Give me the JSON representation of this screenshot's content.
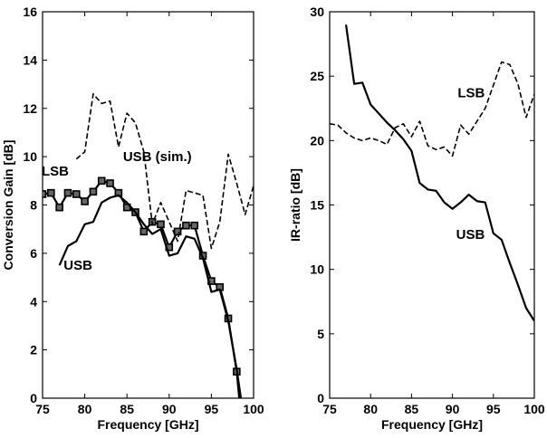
{
  "chart_data": [
    {
      "type": "line",
      "xlabel": "Frequency [GHz]",
      "ylabel": "Conversion Gain [dB]",
      "xlim": [
        75,
        100
      ],
      "ylim": [
        0,
        16
      ],
      "xticks": [
        75,
        80,
        85,
        90,
        95,
        100
      ],
      "yticks": [
        0,
        2,
        4,
        6,
        8,
        10,
        12,
        14,
        16
      ],
      "grid": false,
      "series": [
        {
          "name": "LSB",
          "style": "solid-square-markers",
          "color": "#000000",
          "points": [
            [
              75,
              8.45
            ],
            [
              76,
              8.5
            ],
            [
              77,
              7.9
            ],
            [
              78,
              8.5
            ],
            [
              79,
              8.45
            ],
            [
              80,
              8.15
            ],
            [
              81,
              8.55
            ],
            [
              82,
              9.0
            ],
            [
              83,
              8.9
            ],
            [
              84,
              8.5
            ],
            [
              85,
              7.9
            ],
            [
              86,
              7.7
            ],
            [
              87,
              6.9
            ],
            [
              88,
              7.3
            ],
            [
              89,
              7.2
            ],
            [
              90,
              6.25
            ],
            [
              91,
              6.9
            ],
            [
              92,
              7.15
            ],
            [
              93,
              7.15
            ],
            [
              94,
              5.9
            ],
            [
              95,
              4.85
            ],
            [
              96,
              4.6
            ],
            [
              97,
              3.3
            ],
            [
              98,
              1.1
            ],
            [
              98.3,
              0
            ]
          ]
        },
        {
          "name": "USB",
          "style": "solid",
          "color": "#000000",
          "points": [
            [
              77,
              5.5
            ],
            [
              78,
              6.3
            ],
            [
              79,
              6.5
            ],
            [
              80,
              7.2
            ],
            [
              81,
              7.3
            ],
            [
              82,
              8.1
            ],
            [
              83,
              8.3
            ],
            [
              84,
              8.4
            ],
            [
              85,
              8.1
            ],
            [
              86,
              7.7
            ],
            [
              87,
              7.2
            ],
            [
              88,
              6.8
            ],
            [
              89,
              7.0
            ],
            [
              90,
              5.9
            ],
            [
              91,
              6.0
            ],
            [
              92,
              6.7
            ],
            [
              93,
              6.6
            ],
            [
              94,
              5.8
            ],
            [
              95,
              4.4
            ],
            [
              96,
              4.5
            ],
            [
              97,
              3.2
            ],
            [
              98,
              1.2
            ],
            [
              98.5,
              0
            ]
          ]
        },
        {
          "name": "USB (sim.)",
          "style": "dashed",
          "color": "#000000",
          "points": [
            [
              79,
              9.9
            ],
            [
              80,
              10.2
            ],
            [
              81,
              12.6
            ],
            [
              82,
              12.2
            ],
            [
              83,
              12.3
            ],
            [
              84,
              10.4
            ],
            [
              85,
              11.8
            ],
            [
              86,
              11.4
            ],
            [
              87,
              10.2
            ],
            [
              88,
              7.2
            ],
            [
              89,
              8.1
            ],
            [
              90,
              7.3
            ],
            [
              91,
              6.5
            ],
            [
              92,
              8.6
            ],
            [
              93,
              8.5
            ],
            [
              94,
              8.4
            ],
            [
              95,
              6.2
            ],
            [
              96,
              7.3
            ],
            [
              97,
              10.1
            ],
            [
              98,
              8.9
            ],
            [
              99,
              7.6
            ],
            [
              100,
              8.8
            ]
          ]
        }
      ],
      "annotations": [
        {
          "text": "LSB",
          "x": 76.5,
          "y": 9.4
        },
        {
          "text": "USB (sim.)",
          "x": 88.6,
          "y": 10.0
        },
        {
          "text": "USB",
          "x": 79.2,
          "y": 5.5
        }
      ]
    },
    {
      "type": "line",
      "xlabel": "Frequency [GHz]",
      "ylabel": "IR-ratio [dB]",
      "xlim": [
        75,
        100
      ],
      "ylim": [
        0,
        30
      ],
      "xticks": [
        75,
        80,
        85,
        90,
        95,
        100
      ],
      "yticks": [
        0,
        5,
        10,
        15,
        20,
        25,
        30
      ],
      "grid": false,
      "series": [
        {
          "name": "USB",
          "style": "solid",
          "color": "#000000",
          "points": [
            [
              77,
              29.0
            ],
            [
              78,
              24.4
            ],
            [
              79,
              24.5
            ],
            [
              80,
              22.8
            ],
            [
              81,
              22.1
            ],
            [
              82,
              21.4
            ],
            [
              83,
              20.8
            ],
            [
              84,
              20.1
            ],
            [
              85,
              19.2
            ],
            [
              86,
              16.7
            ],
            [
              87,
              16.2
            ],
            [
              88,
              16.1
            ],
            [
              89,
              15.2
            ],
            [
              90,
              14.7
            ],
            [
              91,
              15.2
            ],
            [
              92,
              15.8
            ],
            [
              93,
              15.3
            ],
            [
              94,
              15.2
            ],
            [
              95,
              12.8
            ],
            [
              96,
              12.3
            ],
            [
              97,
              10.5
            ],
            [
              98,
              8.8
            ],
            [
              99,
              7.0
            ],
            [
              100,
              6.0
            ]
          ]
        },
        {
          "name": "LSB",
          "style": "dashed",
          "color": "#000000",
          "points": [
            [
              75,
              21.3
            ],
            [
              76,
              21.2
            ],
            [
              77,
              20.6
            ],
            [
              78,
              20.2
            ],
            [
              79,
              20.0
            ],
            [
              80,
              20.2
            ],
            [
              81,
              20.0
            ],
            [
              82,
              19.7
            ],
            [
              83,
              21.0
            ],
            [
              84,
              21.3
            ],
            [
              85,
              20.3
            ],
            [
              86,
              21.5
            ],
            [
              87,
              19.6
            ],
            [
              88,
              19.3
            ],
            [
              89,
              19.5
            ],
            [
              90,
              18.8
            ],
            [
              91,
              21.2
            ],
            [
              92,
              20.5
            ],
            [
              93,
              21.5
            ],
            [
              94,
              22.5
            ],
            [
              95,
              24.3
            ],
            [
              96,
              26.1
            ],
            [
              97,
              25.9
            ],
            [
              98,
              24.4
            ],
            [
              99,
              21.8
            ],
            [
              100,
              23.6
            ]
          ]
        }
      ],
      "annotations": [
        {
          "text": "LSB",
          "x": 92.3,
          "y": 23.7
        },
        {
          "text": "USB",
          "x": 92.2,
          "y": 12.7
        }
      ]
    }
  ]
}
